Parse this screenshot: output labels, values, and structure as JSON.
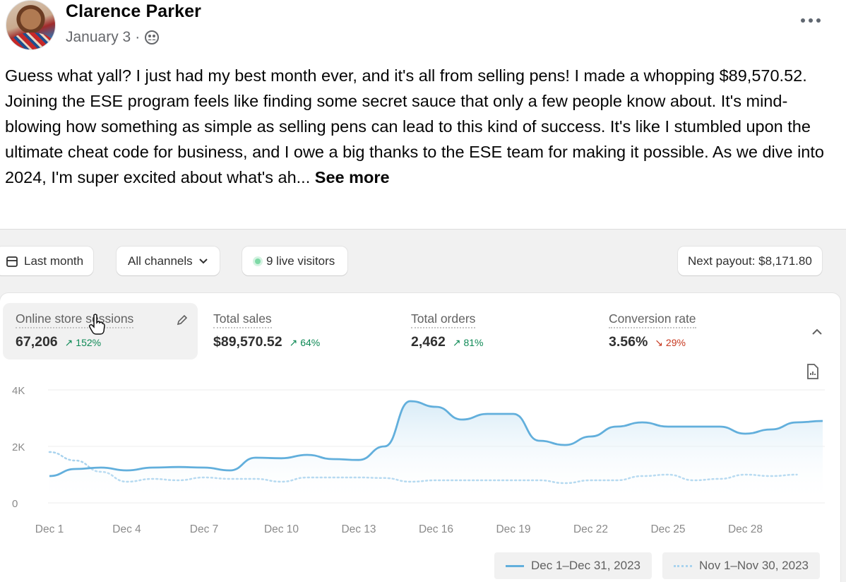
{
  "post": {
    "author": "Clarence Parker",
    "date": "January 3",
    "separator": "·",
    "audience_icon": "group-icon",
    "text": "Guess what yall? I just had my best month ever, and it's all from selling pens! I made a whopping $89,570.52. Joining the ESE program feels like finding some secret sauce that only a few people know about. It's mind-blowing how something as simple as selling pens can lead to this kind of success. It's like I stumbled upon the ultimate cheat code for business, and I owe a big thanks to the ESE team for making it possible. As we dive into 2024, I'm super excited about what's ah...",
    "see_more": "See more"
  },
  "toolbar": {
    "date_range": "Last month",
    "channels": "All channels",
    "live_visitors": "9 live visitors",
    "payout": "Next payout: $8,171.80"
  },
  "metrics": [
    {
      "label": "Online store sessions",
      "value": "67,206",
      "change": "152%",
      "direction": "up"
    },
    {
      "label": "Total sales",
      "value": "$89,570.52",
      "change": "64%",
      "direction": "up"
    },
    {
      "label": "Total orders",
      "value": "2,462",
      "change": "81%",
      "direction": "up"
    },
    {
      "label": "Conversion rate",
      "value": "3.56%",
      "change": "29%",
      "direction": "down"
    }
  ],
  "colors": {
    "current": "#62afdc",
    "previous": "#a9d3ee",
    "up": "#0f8a56",
    "down": "#c7381f"
  },
  "chart_data": {
    "type": "line",
    "y_ticks": [
      "4K",
      "2K",
      "0"
    ],
    "ylim": [
      0,
      4000
    ],
    "x_ticks": [
      "Dec 1",
      "Dec 4",
      "Dec 7",
      "Dec 10",
      "Dec 13",
      "Dec 16",
      "Dec 19",
      "Dec 22",
      "Dec 25",
      "Dec 28"
    ],
    "grid": true,
    "series": [
      {
        "name": "Dec 1–Dec 31, 2023",
        "style": "solid",
        "values": [
          950,
          1200,
          1250,
          1150,
          1250,
          1270,
          1250,
          1150,
          1600,
          1580,
          1700,
          1550,
          1520,
          2000,
          3600,
          3400,
          2950,
          3150,
          3150,
          2200,
          2050,
          2350,
          2700,
          2850,
          2700,
          2700,
          2700,
          2450,
          2600,
          2850,
          2900
        ]
      },
      {
        "name": "Nov 1–Nov 30, 2023",
        "style": "dotted",
        "values": [
          1800,
          1500,
          1100,
          750,
          850,
          800,
          900,
          850,
          850,
          750,
          900,
          900,
          900,
          880,
          750,
          800,
          800,
          800,
          800,
          800,
          700,
          800,
          800,
          950,
          1000,
          800,
          850,
          1000,
          950,
          1000
        ]
      }
    ]
  }
}
